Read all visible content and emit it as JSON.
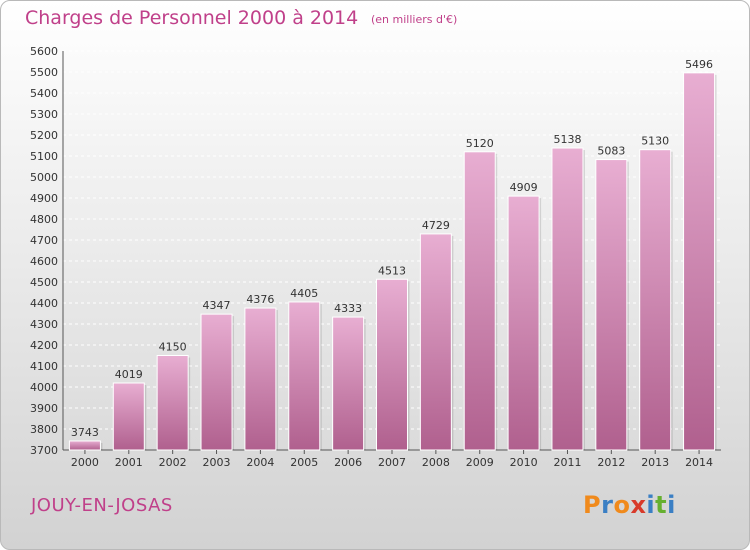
{
  "title": "Charges de Personnel 2000 à 2014",
  "subtitle": "(en milliers d'€)",
  "commune": "JOUY-EN-JOSAS",
  "logo": {
    "letters": [
      "P",
      "r",
      "o",
      "x",
      "i",
      "t",
      "i"
    ],
    "colors": [
      "#f08a1c",
      "#3a7fc4",
      "#f08a1c",
      "#d83a2a",
      "#3a7fc4",
      "#66b030",
      "#3a7fc4"
    ]
  },
  "colors": {
    "accent": "#c0408a",
    "bar_top": "#e8aed2",
    "bar_bottom": "#b0608e"
  },
  "chart_data": {
    "type": "bar",
    "title": "Charges de Personnel 2000 à 2014",
    "subtitle": "(en milliers d'€)",
    "categories": [
      "2000",
      "2001",
      "2002",
      "2003",
      "2004",
      "2005",
      "2006",
      "2007",
      "2008",
      "2009",
      "2010",
      "2011",
      "2012",
      "2013",
      "2014"
    ],
    "values": [
      3743,
      4019,
      4150,
      4347,
      4376,
      4405,
      4333,
      4513,
      4729,
      5120,
      4909,
      5138,
      5083,
      5130,
      5496
    ],
    "ylim": [
      3700,
      5600
    ],
    "yticks": [
      3700,
      3800,
      3900,
      4000,
      4100,
      4200,
      4300,
      4400,
      4500,
      4600,
      4700,
      4800,
      4900,
      5000,
      5100,
      5200,
      5300,
      5400,
      5500,
      5600
    ],
    "grid": true,
    "legend": "none"
  }
}
